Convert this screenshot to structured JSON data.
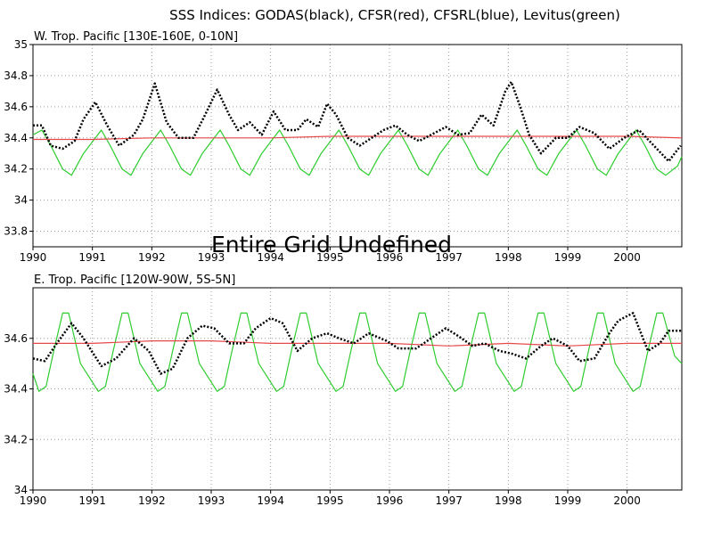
{
  "figure_title": "SSS Indices: GODAS(black), CFSR(red), CFSRL(blue), Levitus(green)",
  "overlay_text": "Entire Grid Undefined",
  "colors": {
    "godas": "#000000",
    "cfsr": "#e8484a",
    "levitus": "#2ecc2e",
    "grid": "#999999"
  },
  "chart_data": [
    {
      "type": "line",
      "title": "W. Trop. Pacific [130E-160E, 0-10N]",
      "xlim": [
        1990,
        2000.92
      ],
      "ylim": [
        33.7,
        35.0
      ],
      "x_ticks": [
        1990,
        1991,
        1992,
        1993,
        1994,
        1995,
        1996,
        1997,
        1998,
        1999,
        2000
      ],
      "x_tick_labels": [
        "1990",
        "1991",
        "1992",
        "1993",
        "1994",
        "1995",
        "1996",
        "1997",
        "1998",
        "1999",
        "2000"
      ],
      "y_ticks": [
        33.8,
        34.0,
        34.2,
        34.4,
        34.6,
        34.8,
        35.0
      ],
      "y_tick_labels": [
        "33.8",
        "34",
        "34.2",
        "34.4",
        "34.6",
        "34.8",
        "35"
      ],
      "grid": true,
      "series": [
        {
          "name": "GODAS",
          "style": "dotted",
          "x": [
            1990.0,
            1990.15,
            1990.3,
            1990.5,
            1990.7,
            1990.85,
            1991.05,
            1991.25,
            1991.45,
            1991.7,
            1991.85,
            1992.05,
            1992.25,
            1992.45,
            1992.7,
            1992.9,
            1993.1,
            1993.3,
            1993.45,
            1993.65,
            1993.85,
            1994.05,
            1994.25,
            1994.45,
            1994.6,
            1994.8,
            1994.95,
            1995.1,
            1995.3,
            1995.5,
            1995.7,
            1995.9,
            1996.1,
            1996.3,
            1996.5,
            1996.7,
            1996.95,
            1997.15,
            1997.35,
            1997.55,
            1997.75,
            1997.95,
            1998.05,
            1998.2,
            1998.35,
            1998.55,
            1998.8,
            1999.0,
            1999.2,
            1999.45,
            1999.7,
            1999.95,
            2000.2,
            2000.45,
            2000.7,
            2000.9
          ],
          "y": [
            34.48,
            34.48,
            34.35,
            34.33,
            34.38,
            34.52,
            34.63,
            34.48,
            34.35,
            34.42,
            34.52,
            34.75,
            34.5,
            34.4,
            34.4,
            34.55,
            34.71,
            34.55,
            34.45,
            34.5,
            34.42,
            34.57,
            34.45,
            34.45,
            34.52,
            34.47,
            34.62,
            34.55,
            34.4,
            34.35,
            34.4,
            34.45,
            34.48,
            34.42,
            34.38,
            34.42,
            34.47,
            34.42,
            34.43,
            34.55,
            34.48,
            34.7,
            34.76,
            34.6,
            34.42,
            34.3,
            34.4,
            34.4,
            34.47,
            34.43,
            34.33,
            34.4,
            34.45,
            34.35,
            34.25,
            34.35
          ]
        },
        {
          "name": "CFSR",
          "style": "solid",
          "x": [
            1990.0,
            1991.0,
            1992.0,
            1993.0,
            1994.0,
            1995.0,
            1996.0,
            1997.0,
            1998.0,
            1999.0,
            2000.0,
            2000.92
          ],
          "y": [
            34.39,
            34.39,
            34.4,
            34.4,
            34.4,
            34.41,
            34.41,
            34.41,
            34.41,
            34.41,
            34.41,
            34.4
          ]
        },
        {
          "name": "Levitus",
          "style": "solid",
          "x": [
            1990.0,
            1990.15,
            1990.3,
            1990.5,
            1990.65,
            1990.85,
            1991.15,
            1991.3,
            1991.5,
            1991.65,
            1991.85,
            1992.15,
            1992.3,
            1992.5,
            1992.65,
            1992.85,
            1993.15,
            1993.3,
            1993.5,
            1993.65,
            1993.85,
            1994.15,
            1994.3,
            1994.5,
            1994.65,
            1994.85,
            1995.15,
            1995.3,
            1995.5,
            1995.65,
            1995.85,
            1996.15,
            1996.3,
            1996.5,
            1996.65,
            1996.85,
            1997.15,
            1997.3,
            1997.5,
            1997.65,
            1997.85,
            1998.15,
            1998.3,
            1998.5,
            1998.65,
            1998.85,
            1999.15,
            1999.3,
            1999.5,
            1999.65,
            1999.85,
            2000.15,
            2000.3,
            2000.5,
            2000.65,
            2000.85,
            2000.92
          ],
          "y": [
            34.42,
            34.45,
            34.35,
            34.2,
            34.16,
            34.3,
            34.45,
            34.35,
            34.2,
            34.16,
            34.3,
            34.45,
            34.35,
            34.2,
            34.16,
            34.3,
            34.45,
            34.35,
            34.2,
            34.16,
            34.3,
            34.45,
            34.35,
            34.2,
            34.16,
            34.3,
            34.45,
            34.35,
            34.2,
            34.16,
            34.3,
            34.45,
            34.35,
            34.2,
            34.16,
            34.3,
            34.45,
            34.35,
            34.2,
            34.16,
            34.3,
            34.45,
            34.35,
            34.2,
            34.16,
            34.3,
            34.45,
            34.35,
            34.2,
            34.16,
            34.3,
            34.45,
            34.35,
            34.2,
            34.16,
            34.22,
            34.28
          ]
        }
      ]
    },
    {
      "type": "line",
      "title": "E. Trop. Pacific [120W-90W, 5S-5N]",
      "xlim": [
        1990,
        2000.92
      ],
      "ylim": [
        34.0,
        34.8
      ],
      "x_ticks": [
        1990,
        1991,
        1992,
        1993,
        1994,
        1995,
        1996,
        1997,
        1998,
        1999,
        2000
      ],
      "x_tick_labels": [
        "1990",
        "1991",
        "1992",
        "1993",
        "1994",
        "1995",
        "1996",
        "1997",
        "1998",
        "1999",
        "2000"
      ],
      "y_ticks": [
        34.0,
        34.2,
        34.4,
        34.6
      ],
      "y_tick_labels": [
        "34",
        "34.2",
        "34.4",
        "34.6"
      ],
      "grid": true,
      "series": [
        {
          "name": "GODAS",
          "style": "dotted",
          "x": [
            1990.0,
            1990.2,
            1990.4,
            1990.65,
            1990.85,
            1991.15,
            1991.4,
            1991.7,
            1991.95,
            1992.15,
            1992.35,
            1992.6,
            1992.85,
            1993.05,
            1993.3,
            1993.55,
            1993.75,
            1994.0,
            1994.2,
            1994.45,
            1994.7,
            1994.95,
            1995.15,
            1995.4,
            1995.65,
            1995.95,
            1996.15,
            1996.45,
            1996.7,
            1996.95,
            1997.15,
            1997.4,
            1997.6,
            1997.85,
            1998.05,
            1998.3,
            1998.55,
            1998.75,
            1999.0,
            1999.2,
            1999.45,
            1999.7,
            1999.85,
            2000.1,
            2000.35,
            2000.55,
            2000.7,
            2000.92
          ],
          "y": [
            34.52,
            34.51,
            34.58,
            34.66,
            34.6,
            34.49,
            34.52,
            34.6,
            34.55,
            34.46,
            34.48,
            34.6,
            34.65,
            34.64,
            34.58,
            34.58,
            34.64,
            34.68,
            34.66,
            34.55,
            34.6,
            34.62,
            34.6,
            34.58,
            34.62,
            34.59,
            34.56,
            34.56,
            34.6,
            34.64,
            34.61,
            34.57,
            34.58,
            34.55,
            34.54,
            34.52,
            34.57,
            34.6,
            34.57,
            34.51,
            34.52,
            34.62,
            34.67,
            34.7,
            34.55,
            34.58,
            34.63,
            34.63
          ]
        },
        {
          "name": "CFSR",
          "style": "solid",
          "x": [
            1990.0,
            1991.0,
            1992.0,
            1993.0,
            1994.0,
            1995.0,
            1996.0,
            1997.0,
            1998.0,
            1999.0,
            2000.0,
            2000.92
          ],
          "y": [
            34.58,
            34.58,
            34.59,
            34.59,
            34.58,
            34.58,
            34.58,
            34.57,
            34.58,
            34.57,
            34.58,
            34.58
          ]
        },
        {
          "name": "Levitus",
          "style": "solid",
          "x": [
            1990.0,
            1990.1,
            1990.22,
            1990.35,
            1990.5,
            1990.6,
            1990.8,
            1991.1,
            1991.22,
            1991.35,
            1991.5,
            1991.6,
            1991.8,
            1992.1,
            1992.22,
            1992.35,
            1992.5,
            1992.6,
            1992.8,
            1993.1,
            1993.22,
            1993.35,
            1993.5,
            1993.6,
            1993.8,
            1994.1,
            1994.22,
            1994.35,
            1994.5,
            1994.6,
            1994.8,
            1995.1,
            1995.22,
            1995.35,
            1995.5,
            1995.6,
            1995.8,
            1996.1,
            1996.22,
            1996.35,
            1996.5,
            1996.6,
            1996.8,
            1997.1,
            1997.22,
            1997.35,
            1997.5,
            1997.6,
            1997.8,
            1998.1,
            1998.22,
            1998.35,
            1998.5,
            1998.6,
            1998.8,
            1999.1,
            1999.22,
            1999.35,
            1999.5,
            1999.6,
            1999.8,
            2000.1,
            2000.22,
            2000.35,
            2000.5,
            2000.6,
            2000.8,
            2000.92
          ],
          "y": [
            34.46,
            34.39,
            34.41,
            34.55,
            34.7,
            34.7,
            34.5,
            34.39,
            34.41,
            34.55,
            34.7,
            34.7,
            34.5,
            34.39,
            34.41,
            34.55,
            34.7,
            34.7,
            34.5,
            34.39,
            34.41,
            34.55,
            34.7,
            34.7,
            34.5,
            34.39,
            34.41,
            34.55,
            34.7,
            34.7,
            34.5,
            34.39,
            34.41,
            34.55,
            34.7,
            34.7,
            34.5,
            34.39,
            34.41,
            34.55,
            34.7,
            34.7,
            34.5,
            34.39,
            34.41,
            34.55,
            34.7,
            34.7,
            34.5,
            34.39,
            34.41,
            34.55,
            34.7,
            34.7,
            34.5,
            34.39,
            34.41,
            34.55,
            34.7,
            34.7,
            34.5,
            34.39,
            34.41,
            34.55,
            34.7,
            34.7,
            34.53,
            34.5
          ]
        }
      ]
    }
  ]
}
